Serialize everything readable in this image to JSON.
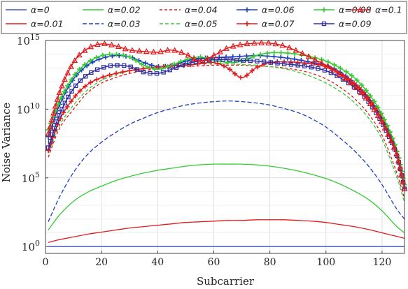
{
  "chart_data": {
    "type": "line",
    "title": "",
    "xlabel": "Subcarrier",
    "ylabel": "Noise Variance",
    "xlim": [
      0,
      128
    ],
    "ylim_log10": [
      -0.5,
      15
    ],
    "yscale": "log",
    "grid": true,
    "legend_position": "top",
    "x_ticks": [
      "0",
      "20",
      "40",
      "60",
      "80",
      "100",
      "120"
    ],
    "y_ticks": [
      {
        "base": "10",
        "exp": "0",
        "value_log10": 0
      },
      {
        "base": "10",
        "exp": "5",
        "value_log10": 5
      },
      {
        "base": "10",
        "exp": "10",
        "value_log10": 10
      },
      {
        "base": "10",
        "exp": "15",
        "value_log10": 15
      }
    ],
    "x": [
      1,
      5,
      10,
      15,
      20,
      25,
      30,
      35,
      40,
      45,
      50,
      55,
      60,
      65,
      70,
      75,
      80,
      85,
      90,
      95,
      100,
      105,
      110,
      115,
      120,
      125,
      128
    ],
    "series": [
      {
        "name": "α=0",
        "label": "α=0",
        "color": "#3a56c5",
        "dash": "",
        "marker": "none",
        "values_log10": [
          0,
          0,
          0,
          0,
          0,
          0,
          0,
          0,
          0,
          0,
          0,
          0,
          0,
          0,
          0,
          0,
          0,
          0,
          0,
          0,
          0,
          0,
          0,
          0,
          0,
          0,
          0
        ]
      },
      {
        "name": "α=0.01",
        "label": "α=0.01",
        "color": "#e31a1c",
        "dash": "",
        "marker": "none",
        "values_log10": [
          0.3,
          0.5,
          0.7,
          0.9,
          1.05,
          1.2,
          1.35,
          1.45,
          1.55,
          1.65,
          1.75,
          1.8,
          1.85,
          1.9,
          1.9,
          1.95,
          1.95,
          1.95,
          1.9,
          1.85,
          1.75,
          1.6,
          1.45,
          1.25,
          1.0,
          0.75,
          0.6
        ]
      },
      {
        "name": "α=0.02",
        "label": "α=0.02",
        "color": "#33cc33",
        "dash": "",
        "marker": "none",
        "values_log10": [
          1.2,
          2.3,
          3.3,
          3.95,
          4.4,
          4.8,
          5.1,
          5.35,
          5.55,
          5.7,
          5.85,
          5.95,
          6.0,
          6.0,
          6.0,
          5.95,
          5.85,
          5.7,
          5.5,
          5.25,
          4.95,
          4.55,
          4.05,
          3.45,
          2.6,
          1.5,
          1.0
        ]
      },
      {
        "name": "α=0.03",
        "label": "α=0.03",
        "color": "#1f3fbf",
        "dash": "6,3",
        "marker": "none",
        "values_log10": [
          1.8,
          3.6,
          5.4,
          6.7,
          7.6,
          8.3,
          8.9,
          9.35,
          9.75,
          10.05,
          10.3,
          10.45,
          10.55,
          10.6,
          10.55,
          10.45,
          10.3,
          10.05,
          9.75,
          9.3,
          8.7,
          7.9,
          7.0,
          5.9,
          4.5,
          2.8,
          2.0
        ]
      },
      {
        "name": "α=0.04",
        "label": "α=0.04",
        "color": "#e31a1c",
        "dash": "4,3",
        "marker": "none",
        "values_log10": [
          6.5,
          8.6,
          10.0,
          11.2,
          11.9,
          12.3,
          12.6,
          12.8,
          12.95,
          13.05,
          13.1,
          13.15,
          13.2,
          13.2,
          13.2,
          13.15,
          13.1,
          13.0,
          12.85,
          12.6,
          12.2,
          11.6,
          10.8,
          9.7,
          8.1,
          5.5,
          3.5
        ]
      },
      {
        "name": "α=0.05",
        "label": "α=0.05",
        "color": "#33cc33",
        "dash": "5,3",
        "marker": "none",
        "values_log10": [
          6.8,
          8.8,
          10.3,
          11.4,
          12.1,
          12.5,
          12.8,
          13.0,
          13.1,
          13.2,
          13.25,
          13.3,
          13.3,
          13.3,
          13.25,
          13.2,
          13.1,
          12.95,
          12.7,
          12.35,
          11.9,
          11.3,
          10.5,
          9.4,
          7.8,
          5.2,
          3.2
        ]
      },
      {
        "name": "α=0.06",
        "label": "α=0.06",
        "color": "#1f3fbf",
        "dash": "",
        "marker": "plus",
        "values_log10": [
          8.0,
          10.3,
          12.2,
          13.2,
          13.7,
          13.9,
          13.8,
          13.4,
          13.1,
          13.2,
          13.5,
          13.7,
          13.75,
          13.8,
          13.85,
          13.9,
          13.85,
          13.75,
          13.6,
          13.4,
          13.2,
          12.7,
          11.9,
          10.8,
          9.2,
          6.8,
          4.2
        ]
      },
      {
        "name": "α=0.07",
        "label": "α=0.07",
        "color": "#e31a1c",
        "dash": "",
        "marker": "plus",
        "values_log10": [
          7.0,
          9.2,
          10.8,
          11.8,
          12.3,
          12.6,
          12.8,
          12.95,
          13.05,
          13.15,
          13.2,
          13.3,
          13.4,
          13.0,
          12.3,
          13.0,
          13.4,
          13.45,
          13.4,
          13.3,
          13.1,
          12.6,
          11.9,
          10.9,
          9.4,
          7.0,
          4.5
        ]
      },
      {
        "name": "α=0.08",
        "label": "α=0.08",
        "color": "#33cc33",
        "dash": "",
        "marker": "plus",
        "values_log10": [
          8.5,
          10.6,
          12.4,
          13.4,
          13.9,
          14.0,
          13.8,
          13.2,
          12.9,
          13.2,
          13.6,
          13.8,
          13.6,
          13.4,
          13.5,
          13.9,
          14.1,
          14.1,
          14.0,
          13.8,
          13.5,
          13.0,
          12.3,
          11.2,
          9.6,
          7.2,
          4.5
        ]
      },
      {
        "name": "α=0.09",
        "label": "α=0.09",
        "color": "#2d2d9f",
        "dash": "",
        "marker": "square",
        "values_log10": [
          7.2,
          9.6,
          11.5,
          12.5,
          13.0,
          13.2,
          13.1,
          12.7,
          12.6,
          12.9,
          13.3,
          13.5,
          13.6,
          13.6,
          13.55,
          13.5,
          13.4,
          13.3,
          13.2,
          13.05,
          12.8,
          12.3,
          11.6,
          10.6,
          9.0,
          6.8,
          4.2
        ]
      },
      {
        "name": "α=0.1",
        "label": "α=0.1",
        "color": "#e31a1c",
        "dash": "",
        "marker": "triangle",
        "values_log10": [
          8.2,
          11.2,
          13.4,
          14.4,
          14.75,
          14.6,
          14.3,
          14.2,
          14.15,
          14.3,
          14.0,
          13.5,
          13.9,
          14.45,
          14.7,
          14.8,
          14.8,
          14.6,
          14.2,
          13.7,
          13.2,
          12.5,
          11.7,
          10.6,
          9.0,
          6.8,
          4.2
        ]
      }
    ]
  }
}
